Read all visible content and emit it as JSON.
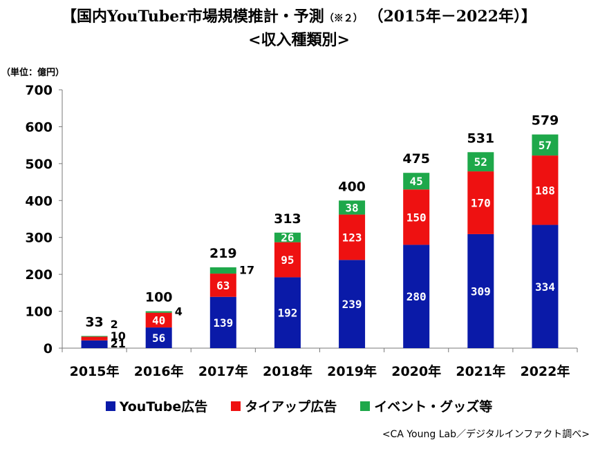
{
  "title_main": "【国内YouTuber市場規模推計・予測",
  "title_note": "（※２）",
  "title_period": "（2015年－2022年）】",
  "subtitle": "<収入種類別>",
  "unit_label": "（単位：億円）",
  "source": "<CA Young Lab／デジタルインファクト調べ>",
  "colors": {
    "youtube_ad": "#0a1aa8",
    "tieup_ad": "#ee1111",
    "event_goods": "#1ea84a"
  },
  "chart_data": {
    "type": "bar",
    "stacked": true,
    "categories": [
      "2015年",
      "2016年",
      "2017年",
      "2018年",
      "2019年",
      "2020年",
      "2021年",
      "2022年"
    ],
    "series": [
      {
        "name": "YouTube広告",
        "values": [
          21,
          56,
          139,
          192,
          239,
          280,
          309,
          334
        ]
      },
      {
        "name": "タイアップ広告",
        "values": [
          10,
          40,
          63,
          95,
          123,
          150,
          170,
          188
        ]
      },
      {
        "name": "イベント・グッズ等",
        "values": [
          2,
          4,
          17,
          26,
          38,
          45,
          52,
          57
        ]
      }
    ],
    "totals": [
      33,
      100,
      219,
      313,
      400,
      475,
      531,
      579
    ],
    "ylim": [
      0,
      700
    ],
    "yticks": [
      0,
      100,
      200,
      300,
      400,
      500,
      600,
      700
    ],
    "legend": [
      "YouTube広告",
      "タイアップ広告",
      "イベント・グッズ等"
    ]
  }
}
